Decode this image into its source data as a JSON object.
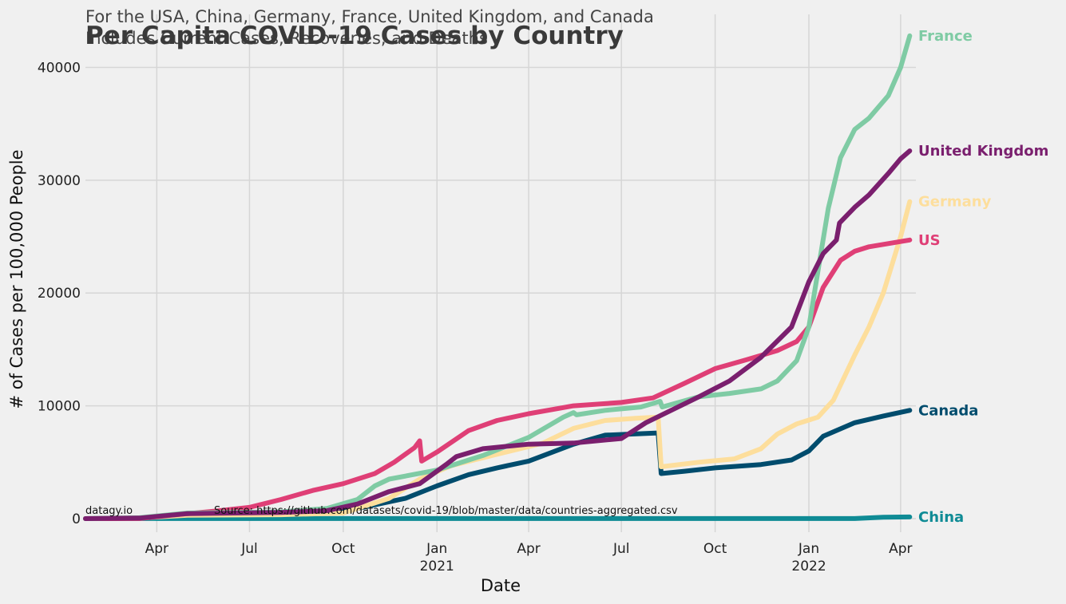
{
  "chart_data": {
    "type": "line",
    "title": "Per Capita COVID-19 Cases by Country",
    "subtitle_line1": "For the USA, China, Germany, France, United Kingdom, and Canada",
    "subtitle_line2": "Includes Current Cases, Recoveries, and Deaths",
    "xlabel": "Date",
    "ylabel": "# of Cases per 100,000 People",
    "credit": "datagy.io",
    "source": "Source: https://github.com/datasets/covid-19/blob/master/data/countries-aggregated.csv",
    "x_ticks": [
      {
        "date": "2020-04-01",
        "label": "Apr",
        "year": ""
      },
      {
        "date": "2020-07-01",
        "label": "Jul",
        "year": ""
      },
      {
        "date": "2020-10-01",
        "label": "Oct",
        "year": ""
      },
      {
        "date": "2021-01-01",
        "label": "Jan",
        "year": "2021"
      },
      {
        "date": "2021-04-01",
        "label": "Apr",
        "year": ""
      },
      {
        "date": "2021-07-01",
        "label": "Jul",
        "year": ""
      },
      {
        "date": "2021-10-01",
        "label": "Oct",
        "year": ""
      },
      {
        "date": "2022-01-01",
        "label": "Jan",
        "year": "2022"
      },
      {
        "date": "2022-04-01",
        "label": "Apr",
        "year": ""
      }
    ],
    "y_ticks": [
      0,
      10000,
      20000,
      30000,
      40000
    ],
    "xlim": [
      "2020-01-22",
      "2022-04-16"
    ],
    "ylim": [
      -1200,
      44700
    ],
    "grid": true,
    "series": [
      {
        "name": "France",
        "color": "#7fcba4",
        "points": [
          [
            "2020-01-22",
            0
          ],
          [
            "2020-03-15",
            80
          ],
          [
            "2020-05-01",
            500
          ],
          [
            "2020-08-01",
            600
          ],
          [
            "2020-09-15",
            900
          ],
          [
            "2020-10-15",
            1700
          ],
          [
            "2020-11-01",
            2900
          ],
          [
            "2020-11-15",
            3500
          ],
          [
            "2021-01-01",
            4300
          ],
          [
            "2021-02-15",
            5600
          ],
          [
            "2021-04-01",
            7200
          ],
          [
            "2021-05-05",
            9000
          ],
          [
            "2021-05-15",
            9400
          ],
          [
            "2021-05-18",
            9200
          ],
          [
            "2021-06-15",
            9600
          ],
          [
            "2021-07-20",
            9900
          ],
          [
            "2021-08-08",
            10400
          ],
          [
            "2021-08-10",
            9900
          ],
          [
            "2021-09-15",
            10800
          ],
          [
            "2021-10-15",
            11100
          ],
          [
            "2021-11-15",
            11500
          ],
          [
            "2021-12-01",
            12200
          ],
          [
            "2021-12-20",
            14000
          ],
          [
            "2022-01-01",
            17000
          ],
          [
            "2022-01-10",
            22000
          ],
          [
            "2022-01-20",
            27500
          ],
          [
            "2022-02-01",
            32000
          ],
          [
            "2022-02-15",
            34500
          ],
          [
            "2022-03-01",
            35500
          ],
          [
            "2022-03-20",
            37500
          ],
          [
            "2022-04-01",
            40000
          ],
          [
            "2022-04-10",
            42800
          ]
        ]
      },
      {
        "name": "United Kingdom",
        "color": "#7a1f6e",
        "points": [
          [
            "2020-01-22",
            0
          ],
          [
            "2020-03-15",
            50
          ],
          [
            "2020-05-01",
            450
          ],
          [
            "2020-08-01",
            550
          ],
          [
            "2020-09-15",
            700
          ],
          [
            "2020-10-15",
            1300
          ],
          [
            "2020-11-15",
            2400
          ],
          [
            "2020-12-15",
            3100
          ],
          [
            "2021-01-10",
            4800
          ],
          [
            "2021-01-20",
            5500
          ],
          [
            "2021-02-15",
            6200
          ],
          [
            "2021-04-01",
            6600
          ],
          [
            "2021-05-15",
            6700
          ],
          [
            "2021-07-01",
            7100
          ],
          [
            "2021-07-25",
            8500
          ],
          [
            "2021-09-15",
            10800
          ],
          [
            "2021-10-15",
            12200
          ],
          [
            "2021-11-15",
            14300
          ],
          [
            "2021-12-15",
            17000
          ],
          [
            "2022-01-01",
            21000
          ],
          [
            "2022-01-15",
            23500
          ],
          [
            "2022-01-28",
            24700
          ],
          [
            "2022-01-31",
            26200
          ],
          [
            "2022-02-15",
            27600
          ],
          [
            "2022-03-01",
            28700
          ],
          [
            "2022-03-20",
            30600
          ],
          [
            "2022-04-01",
            31900
          ],
          [
            "2022-04-10",
            32600
          ]
        ]
      },
      {
        "name": "Germany",
        "color": "#fdde9c",
        "points": [
          [
            "2020-01-22",
            0
          ],
          [
            "2020-03-15",
            60
          ],
          [
            "2020-05-01",
            300
          ],
          [
            "2020-08-01",
            350
          ],
          [
            "2020-10-01",
            500
          ],
          [
            "2020-11-15",
            1800
          ],
          [
            "2020-12-15",
            3500
          ],
          [
            "2021-01-15",
            4700
          ],
          [
            "2021-03-01",
            5700
          ],
          [
            "2021-04-15",
            6700
          ],
          [
            "2021-05-15",
            8000
          ],
          [
            "2021-06-15",
            8700
          ],
          [
            "2021-07-15",
            8900
          ],
          [
            "2021-08-06",
            9000
          ],
          [
            "2021-08-09",
            4600
          ],
          [
            "2021-09-15",
            5000
          ],
          [
            "2021-10-20",
            5300
          ],
          [
            "2021-11-15",
            6200
          ],
          [
            "2021-12-01",
            7500
          ],
          [
            "2021-12-20",
            8400
          ],
          [
            "2022-01-10",
            9000
          ],
          [
            "2022-01-25",
            10500
          ],
          [
            "2022-02-15",
            14500
          ],
          [
            "2022-03-01",
            17000
          ],
          [
            "2022-03-15",
            20000
          ],
          [
            "2022-04-01",
            25000
          ],
          [
            "2022-04-10",
            28100
          ]
        ]
      },
      {
        "name": "US",
        "color": "#df3f76",
        "points": [
          [
            "2020-01-22",
            0
          ],
          [
            "2020-03-15",
            10
          ],
          [
            "2020-04-15",
            300
          ],
          [
            "2020-06-01",
            700
          ],
          [
            "2020-07-01",
            1000
          ],
          [
            "2020-08-01",
            1700
          ],
          [
            "2020-09-01",
            2500
          ],
          [
            "2020-10-01",
            3100
          ],
          [
            "2020-11-01",
            4000
          ],
          [
            "2020-11-20",
            5000
          ],
          [
            "2020-12-10",
            6300
          ],
          [
            "2020-12-15",
            6900
          ],
          [
            "2020-12-17",
            5100
          ],
          [
            "2021-01-01",
            5900
          ],
          [
            "2021-02-01",
            7800
          ],
          [
            "2021-03-01",
            8700
          ],
          [
            "2021-04-01",
            9300
          ],
          [
            "2021-05-15",
            10000
          ],
          [
            "2021-07-01",
            10300
          ],
          [
            "2021-08-01",
            10700
          ],
          [
            "2021-09-01",
            12000
          ],
          [
            "2021-10-01",
            13300
          ],
          [
            "2021-11-01",
            14100
          ],
          [
            "2021-12-01",
            14900
          ],
          [
            "2021-12-20",
            15700
          ],
          [
            "2022-01-01",
            17000
          ],
          [
            "2022-01-15",
            20500
          ],
          [
            "2022-02-01",
            22900
          ],
          [
            "2022-02-15",
            23700
          ],
          [
            "2022-03-01",
            24100
          ],
          [
            "2022-04-10",
            24700
          ]
        ]
      },
      {
        "name": "Canada",
        "color": "#004c6d",
        "points": [
          [
            "2020-01-22",
            0
          ],
          [
            "2020-03-15",
            30
          ],
          [
            "2020-05-01",
            400
          ],
          [
            "2020-09-01",
            550
          ],
          [
            "2020-10-15",
            900
          ],
          [
            "2020-12-01",
            1800
          ],
          [
            "2021-01-01",
            2900
          ],
          [
            "2021-02-01",
            3900
          ],
          [
            "2021-03-01",
            4500
          ],
          [
            "2021-04-01",
            5100
          ],
          [
            "2021-05-15",
            6600
          ],
          [
            "2021-06-15",
            7400
          ],
          [
            "2021-08-06",
            7600
          ],
          [
            "2021-08-09",
            4000
          ],
          [
            "2021-09-01",
            4200
          ],
          [
            "2021-10-01",
            4500
          ],
          [
            "2021-11-15",
            4800
          ],
          [
            "2021-12-15",
            5200
          ],
          [
            "2022-01-01",
            6000
          ],
          [
            "2022-01-15",
            7300
          ],
          [
            "2022-02-15",
            8500
          ],
          [
            "2022-03-15",
            9100
          ],
          [
            "2022-04-10",
            9600
          ]
        ]
      },
      {
        "name": "China",
        "color": "#0f8b95",
        "points": [
          [
            "2020-01-22",
            0
          ],
          [
            "2020-03-01",
            6
          ],
          [
            "2022-02-15",
            10
          ],
          [
            "2022-03-15",
            120
          ],
          [
            "2022-04-10",
            150
          ]
        ]
      }
    ]
  }
}
